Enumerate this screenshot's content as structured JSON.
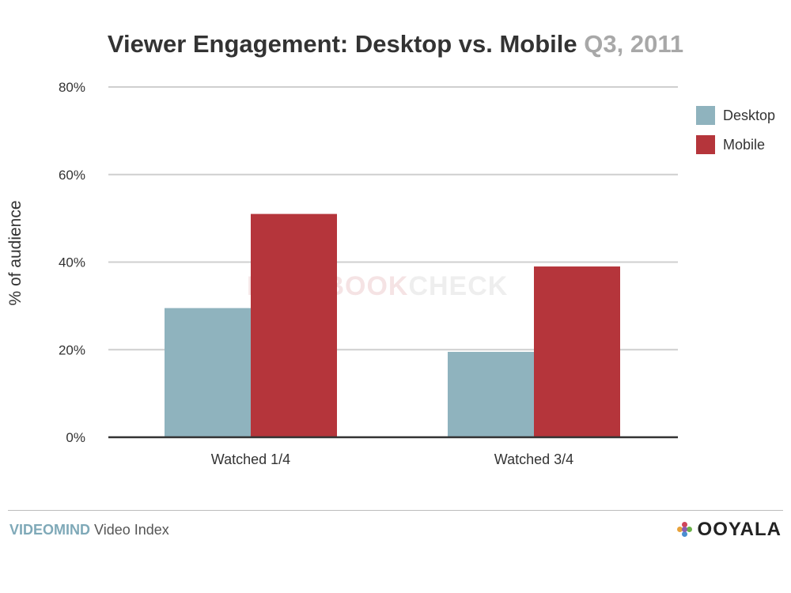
{
  "chart_data": {
    "type": "bar",
    "title": "Viewer Engagement: Desktop vs. Mobile",
    "title_date": "Q3, 2011",
    "ylabel": "% of audience",
    "xlabel": "",
    "categories": [
      "Watched 1/4",
      "Watched 3/4"
    ],
    "series": [
      {
        "name": "Desktop",
        "color": "#8fb3be",
        "values": [
          29.5,
          19.5
        ]
      },
      {
        "name": "Mobile",
        "color": "#b5353b",
        "values": [
          51,
          39
        ]
      }
    ],
    "ylim": [
      0,
      80
    ],
    "yticks": [
      "0%",
      "20%",
      "40%",
      "60%",
      "80%"
    ],
    "grid": true,
    "legend_position": "right"
  },
  "footer": {
    "brand": "VIDEOMIND",
    "subtitle": "Video Index",
    "logo_text": "OOYALA",
    "logo_icon": "ooyala-dots-logo"
  },
  "watermark": {
    "part_a": "NOTEBOOK",
    "part_b": "CHECK",
    "icon": "notebookcheck-logo"
  }
}
